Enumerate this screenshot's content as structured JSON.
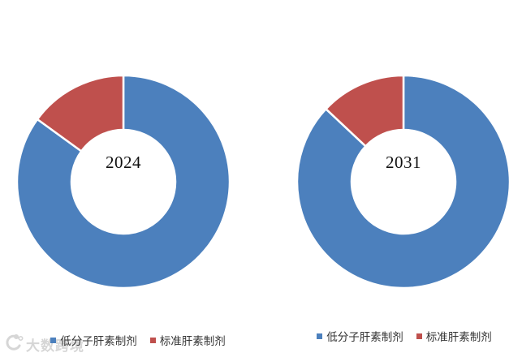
{
  "page": {
    "background": "#ffffff"
  },
  "watermark": {
    "icon": "crescent-dots-logo-icon",
    "text": "大数跨境",
    "color": "#d2d2d2"
  },
  "chart_data": [
    {
      "type": "pie",
      "subtype": "donut",
      "center_label": "2024",
      "categories": [
        "低分子肝素制剂",
        "标准肝素制剂"
      ],
      "values": [
        85,
        15
      ],
      "colors": [
        "#4C80BD",
        "#BF504D"
      ],
      "start_angle_deg": 0,
      "direction": "clockwise",
      "inner_radius_ratio": 0.485,
      "slice_border_color": "#ffffff",
      "legend_position": "bottom"
    },
    {
      "type": "pie",
      "subtype": "donut",
      "center_label": "2031",
      "categories": [
        "低分子肝素制剂",
        "标准肝素制剂"
      ],
      "values": [
        87,
        13
      ],
      "colors": [
        "#4C80BD",
        "#BF504D"
      ],
      "start_angle_deg": 0,
      "direction": "clockwise",
      "inner_radius_ratio": 0.485,
      "slice_border_color": "#ffffff",
      "legend_position": "bottom"
    }
  ]
}
